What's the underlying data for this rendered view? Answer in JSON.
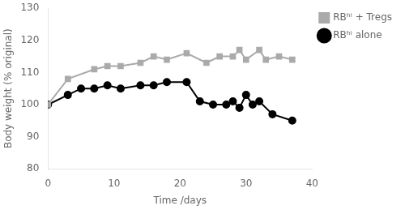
{
  "chart_data": {
    "type": "line",
    "x_label": "Time /days",
    "y_label": "Body weight (% original)",
    "series": [
      {
        "name": "RBʰⁱ + Tregs",
        "color": "#aaaaaa",
        "marker": "square",
        "x": [
          0,
          3,
          7,
          9,
          11,
          14,
          16,
          18,
          21,
          24,
          26,
          28,
          29,
          30,
          32,
          33,
          35,
          37
        ],
        "values": [
          100,
          108,
          111,
          112,
          112,
          113,
          115,
          114,
          116,
          113,
          115,
          115,
          117,
          114,
          117,
          114,
          115,
          114
        ]
      },
      {
        "name": "RBʰⁱ alone",
        "color": "#000000",
        "marker": "circle",
        "x": [
          0,
          3,
          5,
          7,
          9,
          11,
          14,
          16,
          18,
          21,
          23,
          25,
          27,
          28,
          29,
          30,
          31,
          32,
          34,
          37
        ],
        "values": [
          100,
          103,
          105,
          105,
          106,
          105,
          106,
          106,
          107,
          107,
          101,
          100,
          100,
          101,
          99,
          103,
          100,
          101,
          97,
          95
        ]
      }
    ],
    "xlim": [
      0,
      40
    ],
    "ylim": [
      80,
      130
    ],
    "xticks": [
      0,
      10,
      20,
      30,
      40
    ],
    "yticks": [
      80,
      90,
      100,
      110,
      120,
      130
    ],
    "grid": false,
    "legend": "upper right"
  }
}
